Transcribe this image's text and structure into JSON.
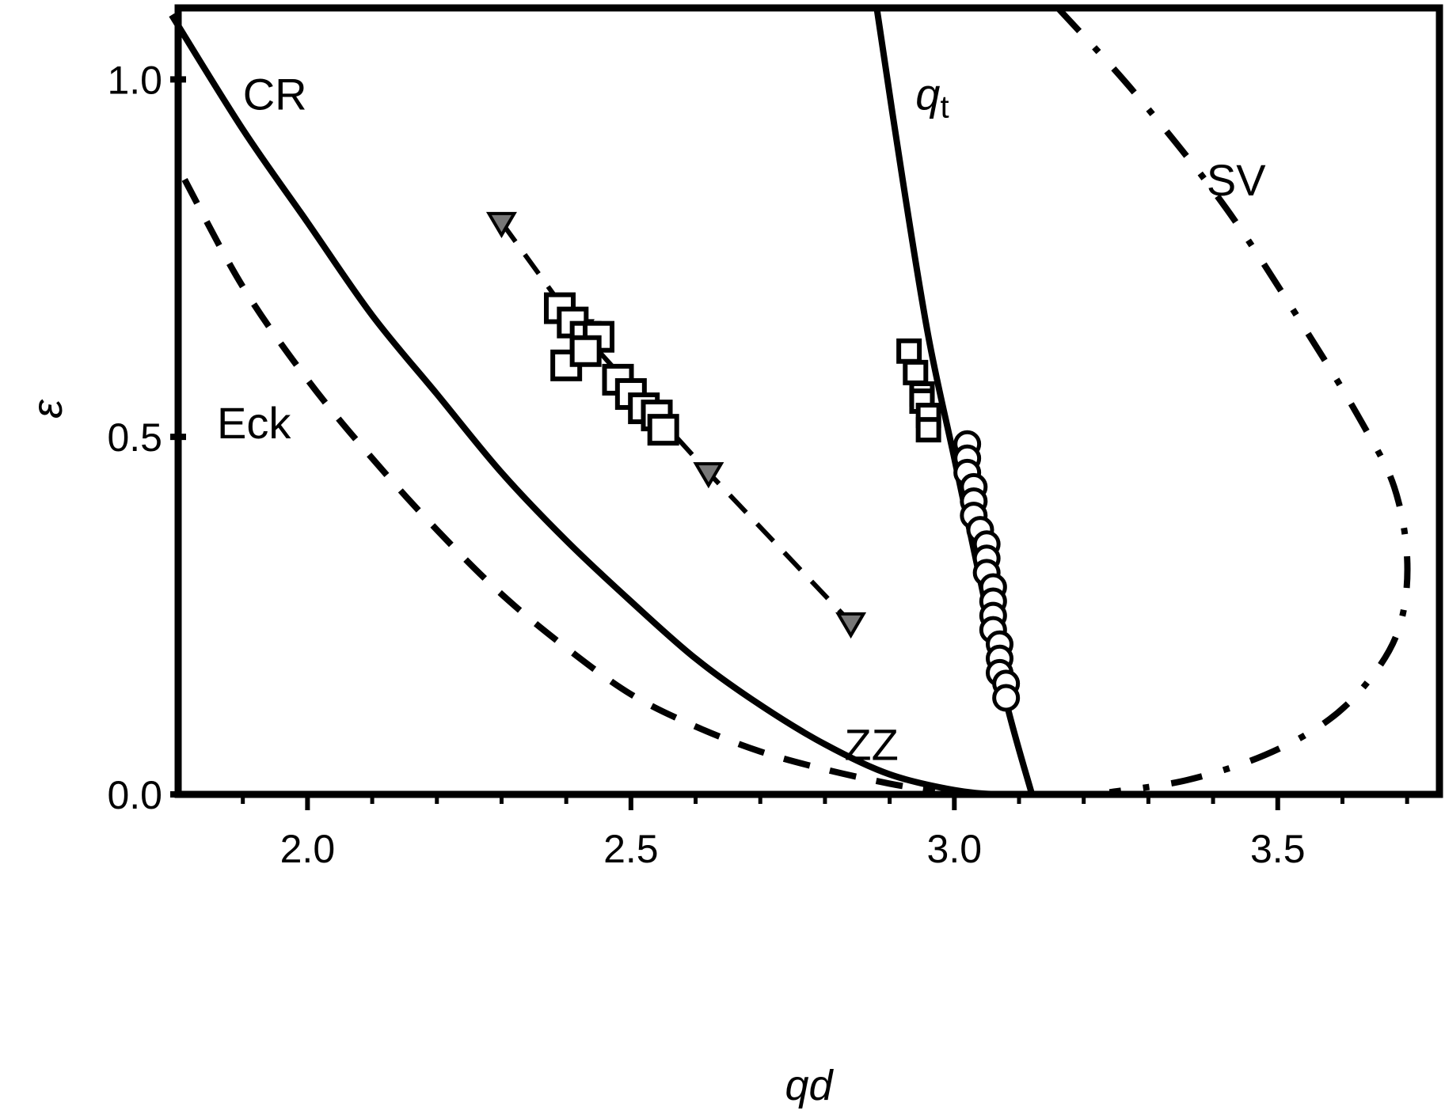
{
  "chart_data": {
    "type": "line",
    "xlabel": "qd",
    "ylabel": "ε",
    "xlim": [
      1.8,
      3.75
    ],
    "ylim": [
      0.0,
      1.1
    ],
    "grid": false,
    "x_ticks": [
      "2.0",
      "2.5",
      "3.0",
      "3.5"
    ],
    "y_ticks": [
      "0.0",
      "0.5",
      "1.0"
    ],
    "x_tick_values": [
      2.0,
      2.5,
      3.0,
      3.5
    ],
    "y_tick_values": [
      0.0,
      0.5,
      1.0
    ],
    "curve_labels": [
      {
        "text": "CR",
        "x": 1.9,
        "y": 0.98
      },
      {
        "text": "Eck",
        "x": 1.86,
        "y": 0.52
      },
      {
        "text": "ZZ",
        "x": 2.83,
        "y": 0.07
      },
      {
        "text": "SV",
        "x": 3.39,
        "y": 0.86
      },
      {
        "text": "q",
        "sub": "t",
        "x": 2.94,
        "y": 0.98
      }
    ],
    "series": [
      {
        "style": "solid",
        "x": [
          1.79,
          1.9,
          2.0,
          2.1,
          2.2,
          2.3,
          2.4,
          2.5,
          2.6,
          2.7,
          2.8,
          2.9,
          3.0,
          3.07,
          3.12
        ],
        "y": [
          1.09,
          0.93,
          0.8,
          0.67,
          0.56,
          0.45,
          0.355,
          0.27,
          0.19,
          0.125,
          0.07,
          0.028,
          0.006,
          0.0,
          0.0
        ]
      },
      {
        "style": "dashed",
        "x": [
          1.81,
          1.9,
          2.0,
          2.1,
          2.2,
          2.3,
          2.4,
          2.5,
          2.6,
          2.7,
          2.8,
          2.9,
          2.97
        ],
        "y": [
          0.86,
          0.71,
          0.58,
          0.47,
          0.37,
          0.28,
          0.205,
          0.14,
          0.095,
          0.06,
          0.035,
          0.015,
          0.005
        ]
      },
      {
        "style": "solid",
        "x": [
          2.88,
          2.92,
          2.96,
          3.0,
          3.04,
          3.08,
          3.12
        ],
        "y": [
          1.1,
          0.86,
          0.64,
          0.47,
          0.3,
          0.13,
          0.0
        ]
      },
      {
        "style": "dashdot",
        "x": [
          3.16,
          3.28,
          3.42,
          3.55,
          3.63,
          3.68,
          3.7,
          3.69,
          3.65,
          3.58,
          3.48,
          3.36,
          3.24
        ],
        "y": [
          1.1,
          0.98,
          0.82,
          0.64,
          0.52,
          0.43,
          0.33,
          0.24,
          0.17,
          0.105,
          0.055,
          0.02,
          0.003
        ]
      },
      {
        "style": "dashed-triangles",
        "x": [
          2.3,
          2.42,
          2.62,
          2.84
        ],
        "y": [
          0.8,
          0.65,
          0.45,
          0.24
        ]
      },
      {
        "style": "squares",
        "x": [
          2.39,
          2.41,
          2.43,
          2.45,
          2.48,
          2.5,
          2.52,
          2.54,
          2.55,
          2.4,
          2.43
        ],
        "y": [
          0.68,
          0.66,
          0.64,
          0.64,
          0.58,
          0.56,
          0.54,
          0.53,
          0.51,
          0.6,
          0.62
        ]
      },
      {
        "style": "squares-small",
        "x": [
          2.93,
          2.94,
          2.95,
          2.95,
          2.96,
          2.96
        ],
        "y": [
          0.62,
          0.59,
          0.56,
          0.55,
          0.53,
          0.51
        ]
      },
      {
        "style": "circles",
        "x": [
          3.02,
          3.02,
          3.02,
          3.03,
          3.03,
          3.03,
          3.04,
          3.05,
          3.05,
          3.05,
          3.06,
          3.06,
          3.06,
          3.06,
          3.07,
          3.07,
          3.07,
          3.08,
          3.08
        ],
        "y": [
          0.49,
          0.47,
          0.45,
          0.43,
          0.41,
          0.39,
          0.37,
          0.35,
          0.33,
          0.31,
          0.29,
          0.27,
          0.25,
          0.23,
          0.21,
          0.19,
          0.17,
          0.155,
          0.135
        ]
      }
    ]
  }
}
